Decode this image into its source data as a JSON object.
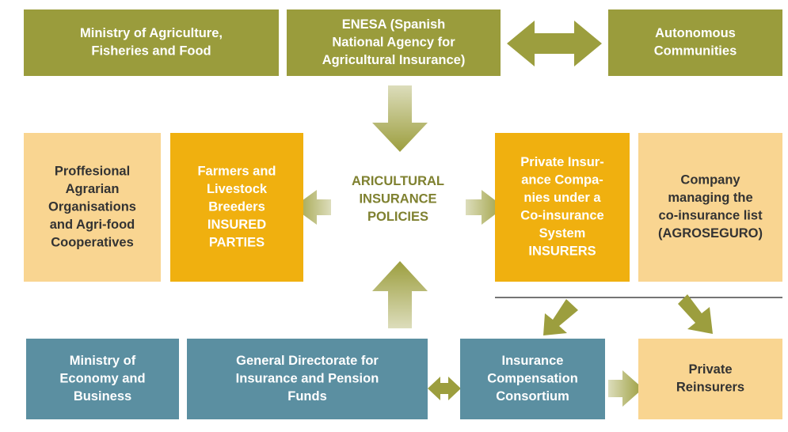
{
  "nodes": [
    {
      "lines": [
        "Ministry of Agriculture,",
        "Fisheries and Food"
      ]
    },
    {
      "lines": [
        "ENESA (Spanish",
        "National Agency for",
        "Agricultural Insurance)"
      ]
    },
    {
      "lines": [
        "Autonomous",
        "Communities"
      ]
    },
    {
      "lines": [
        "Proffesional",
        "Agrarian",
        "Organisations",
        "and Agri-food",
        "Cooperatives"
      ]
    },
    {
      "lines": [
        "Farmers and",
        "Livestock",
        "Breeders",
        "INSURED",
        "PARTIES"
      ]
    },
    {
      "lines": [
        "ARICULTURAL",
        "INSURANCE",
        "POLICIES"
      ]
    },
    {
      "lines": [
        "Private Insur-",
        "ance Compa-",
        "nies under a",
        "Co-insurance",
        "System",
        "INSURERS"
      ]
    },
    {
      "lines": [
        "Company",
        "managing the",
        "co-insurance list",
        "(AGROSEGURO)"
      ]
    },
    {
      "lines": [
        "Ministry of",
        "Economy and",
        "Business"
      ]
    },
    {
      "lines": [
        "General Directorate for",
        "Insurance and Pension",
        "Funds"
      ]
    },
    {
      "lines": [
        "Insurance",
        "Compensation",
        "Consortium"
      ]
    },
    {
      "lines": [
        "Private",
        "Reinsurers"
      ]
    }
  ]
}
